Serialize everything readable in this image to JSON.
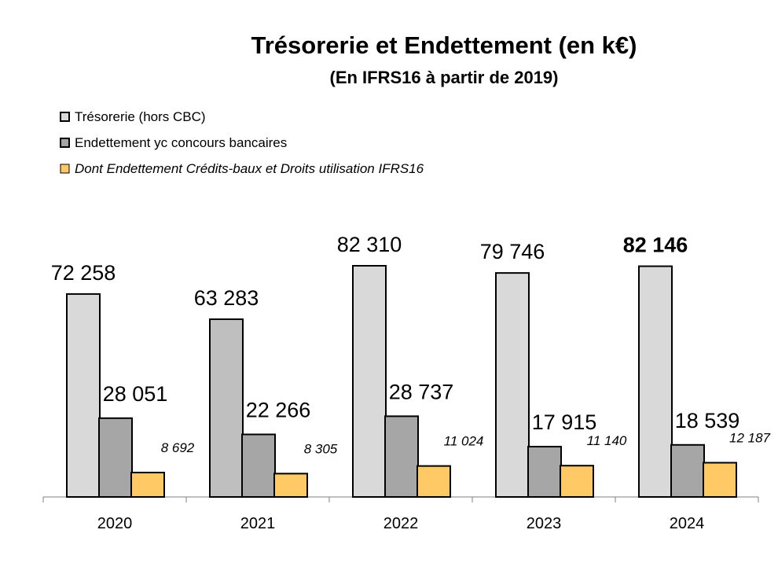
{
  "chart_data": {
    "type": "bar",
    "title": "Trésorerie et Endettement  (en k€)",
    "subtitle": "(En IFRS16 à partir de 2019)",
    "categories": [
      "2020",
      "2021",
      "2022",
      "2023",
      "2024"
    ],
    "series": [
      {
        "name": "Trésorerie (hors CBC)",
        "values": [
          72258,
          63283,
          82310,
          79746,
          82146
        ],
        "labels": [
          "72 258",
          "63 283",
          "82 310",
          "79 746",
          "82 146"
        ],
        "colors": [
          "#d9d9d9",
          "#bfbfbf",
          "#d9d9d9",
          "#d9d9d9",
          "#d9d9d9"
        ]
      },
      {
        "name": "Endettement yc concours bancaires",
        "values": [
          28051,
          22266,
          28737,
          17915,
          18539
        ],
        "labels": [
          "28 051",
          "22 266",
          "28 737",
          "17 915",
          "18 539"
        ],
        "color": "#a6a6a6"
      },
      {
        "name": "Dont Endettement Crédits-baux et Droits utilisation IFRS16",
        "values": [
          8692,
          8305,
          11024,
          11140,
          12187
        ],
        "labels": [
          "8 692",
          "8 305",
          "11 024",
          "11 140",
          "12 187"
        ],
        "color": "#ffc966"
      }
    ],
    "ylim": [
      0,
      90000
    ],
    "xlabel": "",
    "ylabel": "",
    "grid": false,
    "legend": "top-left"
  }
}
